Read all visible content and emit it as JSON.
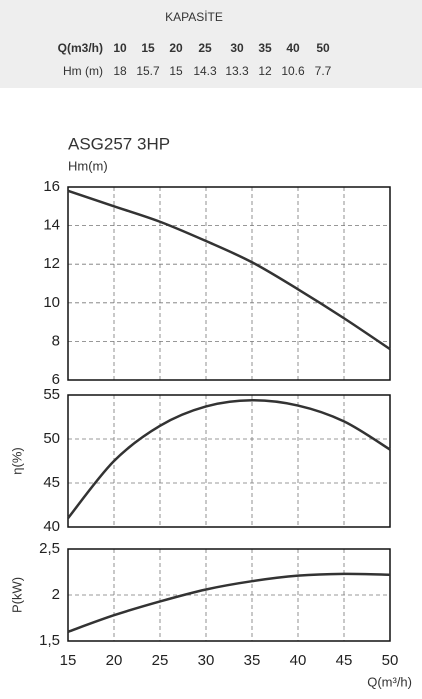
{
  "table": {
    "title": "KAPASİTE",
    "rows": [
      [
        "Q(m3/h)",
        "10",
        "15",
        "20",
        "25",
        "30",
        "35",
        "40",
        "50"
      ],
      [
        "Hm (m)",
        "18",
        "15.7",
        "15",
        "14.3",
        "13.3",
        "12",
        "10.6",
        "7.7"
      ]
    ]
  },
  "chart_data": [
    {
      "type": "line",
      "title": "ASG257 3HP",
      "ylabel": "Hm(m)",
      "x": [
        15,
        20,
        25,
        30,
        35,
        40,
        45,
        50
      ],
      "values": [
        15.8,
        15.0,
        14.2,
        13.2,
        12.1,
        10.7,
        9.2,
        7.6
      ],
      "color": "#333333",
      "xlim": [
        15,
        50
      ],
      "xticks": [
        15,
        20,
        25,
        30,
        35,
        40,
        45,
        50
      ],
      "ylim": [
        6,
        16
      ],
      "yticks": [
        6,
        8,
        10,
        12,
        14,
        16
      ],
      "grid": true
    },
    {
      "type": "line",
      "ylabel": "η(%)",
      "x": [
        15,
        20,
        25,
        30,
        35,
        40,
        45,
        50
      ],
      "values": [
        41,
        47.5,
        51.5,
        53.7,
        54.4,
        53.8,
        52,
        48.8
      ],
      "color": "#333333",
      "xlim": [
        15,
        50
      ],
      "xticks": [
        15,
        20,
        25,
        30,
        35,
        40,
        45,
        50
      ],
      "ylim": [
        40,
        55
      ],
      "yticks": [
        40,
        45,
        50,
        55
      ],
      "grid": true
    },
    {
      "type": "line",
      "ylabel": "P(kW)",
      "xlabel": "Q(m³/h)",
      "x": [
        15,
        20,
        25,
        30,
        35,
        40,
        45,
        50
      ],
      "values": [
        1.6,
        1.78,
        1.93,
        2.06,
        2.15,
        2.21,
        2.23,
        2.22
      ],
      "color": "#333333",
      "xlim": [
        15,
        50
      ],
      "xticks": [
        15,
        20,
        25,
        30,
        35,
        40,
        45,
        50
      ],
      "ylim": [
        1.5,
        2.5
      ],
      "yticks": [
        {
          "value": 1.5,
          "label": "1,5"
        },
        2,
        {
          "value": 2.5,
          "label": "2,5"
        }
      ],
      "grid": true
    }
  ]
}
